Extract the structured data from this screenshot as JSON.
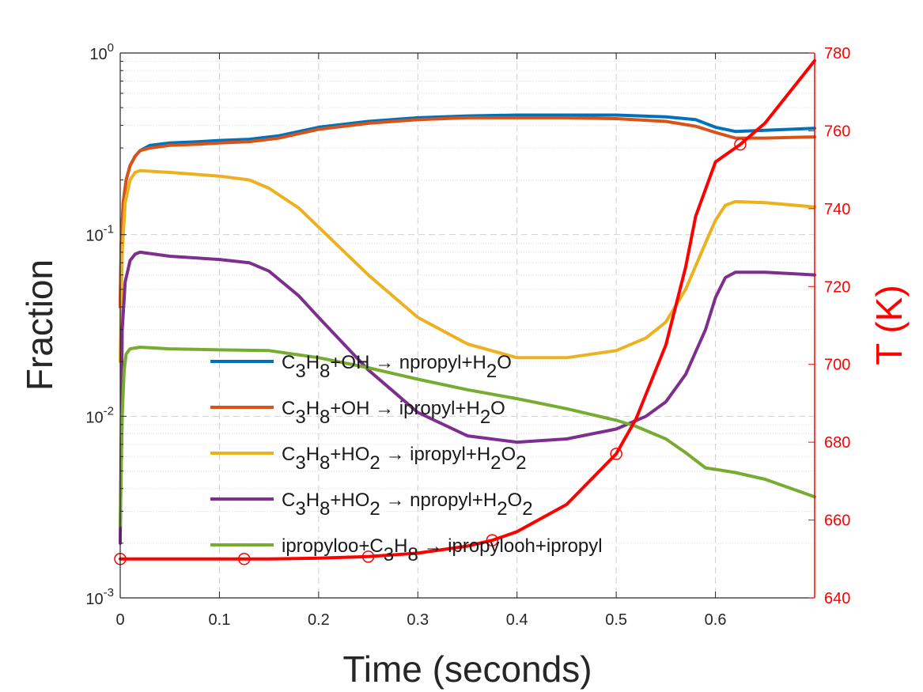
{
  "chart_data": {
    "type": "line",
    "xlabel": "Time (seconds)",
    "ylabel": "Fraction",
    "ylabel_right": "T (K)",
    "xlim": [
      0,
      0.7
    ],
    "ylim": [
      0.001,
      1
    ],
    "yscale": "log",
    "ylim_right": [
      640,
      780
    ],
    "x_ticks": [
      0,
      0.1,
      0.2,
      0.3,
      0.4,
      0.5,
      0.6
    ],
    "x_tick_labels": [
      "0",
      "0.1",
      "0.2",
      "0.3",
      "0.4",
      "0.5",
      "0.6"
    ],
    "y_ticks": [
      {
        "value": 1,
        "base": "10",
        "exp": "0"
      },
      {
        "value": 0.1,
        "base": "10",
        "exp": "-1"
      },
      {
        "value": 0.01,
        "base": "10",
        "exp": "-2"
      },
      {
        "value": 0.001,
        "base": "10",
        "exp": "-3"
      }
    ],
    "y_right_ticks": [
      640,
      660,
      680,
      700,
      720,
      740,
      760,
      780
    ],
    "grid": true,
    "legend_placement": "center",
    "series": [
      {
        "name": "C3H8+OH → npropyl+H2O",
        "label_parts": [
          [
            "C",
            "n"
          ],
          [
            "3",
            "sub"
          ],
          [
            "H",
            "n"
          ],
          [
            "8",
            "sub"
          ],
          [
            "+OH → npropyl+H",
            "n"
          ],
          [
            "2",
            "sub"
          ],
          [
            "O",
            "n"
          ]
        ],
        "color": "#0072BD",
        "axis": "left",
        "x": [
          0.0,
          0.001,
          0.003,
          0.006,
          0.01,
          0.015,
          0.02,
          0.03,
          0.05,
          0.08,
          0.1,
          0.13,
          0.16,
          0.2,
          0.25,
          0.3,
          0.35,
          0.4,
          0.45,
          0.5,
          0.55,
          0.58,
          0.6,
          0.62,
          0.65,
          0.7
        ],
        "y": [
          0.04,
          0.09,
          0.15,
          0.2,
          0.24,
          0.27,
          0.29,
          0.31,
          0.32,
          0.325,
          0.33,
          0.335,
          0.35,
          0.39,
          0.42,
          0.44,
          0.45,
          0.455,
          0.455,
          0.455,
          0.445,
          0.43,
          0.39,
          0.37,
          0.375,
          0.385
        ]
      },
      {
        "name": "C3H8+OH → ipropyl+H2O",
        "label_parts": [
          [
            "C",
            "n"
          ],
          [
            "3",
            "sub"
          ],
          [
            "H",
            "n"
          ],
          [
            "8",
            "sub"
          ],
          [
            "+OH → ipropyl+H",
            "n"
          ],
          [
            "2",
            "sub"
          ],
          [
            "O",
            "n"
          ]
        ],
        "color": "#D95319",
        "axis": "left",
        "x": [
          0.0,
          0.001,
          0.003,
          0.006,
          0.01,
          0.015,
          0.02,
          0.03,
          0.05,
          0.08,
          0.1,
          0.13,
          0.16,
          0.2,
          0.25,
          0.3,
          0.35,
          0.4,
          0.45,
          0.5,
          0.55,
          0.58,
          0.6,
          0.62,
          0.65,
          0.7
        ],
        "y": [
          0.04,
          0.09,
          0.15,
          0.2,
          0.24,
          0.27,
          0.29,
          0.3,
          0.31,
          0.315,
          0.32,
          0.325,
          0.34,
          0.38,
          0.41,
          0.43,
          0.44,
          0.44,
          0.44,
          0.435,
          0.42,
          0.395,
          0.365,
          0.34,
          0.34,
          0.345
        ]
      },
      {
        "name": "C3H8+HO2 → ipropyl+H2O2",
        "label_parts": [
          [
            "C",
            "n"
          ],
          [
            "3",
            "sub"
          ],
          [
            "H",
            "n"
          ],
          [
            "8",
            "sub"
          ],
          [
            "+HO",
            "n"
          ],
          [
            "2",
            "sub"
          ],
          [
            " → ipropyl+H",
            "n"
          ],
          [
            "2",
            "sub"
          ],
          [
            "O",
            "n"
          ],
          [
            "2",
            "sub"
          ]
        ],
        "color": "#EDB120",
        "axis": "left",
        "x": [
          0.0,
          0.002,
          0.005,
          0.01,
          0.015,
          0.02,
          0.05,
          0.1,
          0.13,
          0.15,
          0.18,
          0.2,
          0.25,
          0.3,
          0.35,
          0.4,
          0.45,
          0.5,
          0.53,
          0.55,
          0.57,
          0.59,
          0.6,
          0.61,
          0.62,
          0.65,
          0.7
        ],
        "y": [
          0.02,
          0.08,
          0.15,
          0.2,
          0.22,
          0.225,
          0.22,
          0.21,
          0.2,
          0.18,
          0.14,
          0.11,
          0.06,
          0.035,
          0.025,
          0.021,
          0.021,
          0.023,
          0.027,
          0.033,
          0.05,
          0.09,
          0.12,
          0.145,
          0.152,
          0.15,
          0.142
        ]
      },
      {
        "name": "C3H8+HO2 → npropyl+H2O2",
        "label_parts": [
          [
            "C",
            "n"
          ],
          [
            "3",
            "sub"
          ],
          [
            "H",
            "n"
          ],
          [
            "8",
            "sub"
          ],
          [
            "+HO",
            "n"
          ],
          [
            "2",
            "sub"
          ],
          [
            " → npropyl+H",
            "n"
          ],
          [
            "2",
            "sub"
          ],
          [
            "O",
            "n"
          ],
          [
            "2",
            "sub"
          ]
        ],
        "color": "#7E2F8E",
        "axis": "left",
        "x": [
          0.0,
          0.002,
          0.005,
          0.01,
          0.015,
          0.02,
          0.05,
          0.1,
          0.13,
          0.15,
          0.18,
          0.2,
          0.25,
          0.3,
          0.35,
          0.4,
          0.45,
          0.5,
          0.53,
          0.55,
          0.57,
          0.59,
          0.6,
          0.61,
          0.62,
          0.65,
          0.7
        ],
        "y": [
          0.002,
          0.03,
          0.055,
          0.072,
          0.078,
          0.08,
          0.076,
          0.073,
          0.07,
          0.063,
          0.046,
          0.035,
          0.018,
          0.0105,
          0.0078,
          0.0072,
          0.0075,
          0.0085,
          0.01,
          0.012,
          0.017,
          0.03,
          0.045,
          0.058,
          0.062,
          0.062,
          0.06
        ]
      },
      {
        "name": "ipropyloo+C3H8 → ipropylooh+ipropyl",
        "label_parts": [
          [
            "ipropyloo+C",
            "n"
          ],
          [
            "3",
            "sub"
          ],
          [
            "H",
            "n"
          ],
          [
            "8",
            "sub"
          ],
          [
            " → ipropylooh+ipropyl",
            "n"
          ]
        ],
        "color": "#77AC30",
        "axis": "left",
        "x": [
          0.0,
          0.001,
          0.002,
          0.004,
          0.006,
          0.01,
          0.02,
          0.05,
          0.1,
          0.15,
          0.2,
          0.25,
          0.3,
          0.35,
          0.4,
          0.45,
          0.5,
          0.52,
          0.55,
          0.57,
          0.59,
          0.6,
          0.62,
          0.65,
          0.7
        ],
        "y": [
          0.0025,
          0.005,
          0.01,
          0.018,
          0.022,
          0.0235,
          0.024,
          0.0235,
          0.0232,
          0.023,
          0.021,
          0.0185,
          0.016,
          0.014,
          0.0125,
          0.011,
          0.0095,
          0.0088,
          0.0075,
          0.0063,
          0.0052,
          0.0051,
          0.0049,
          0.0045,
          0.0036
        ]
      },
      {
        "name": "T (K)",
        "color": "#FF0000",
        "axis": "right",
        "x": [
          0.0,
          0.05,
          0.1,
          0.15,
          0.2,
          0.25,
          0.3,
          0.35,
          0.375,
          0.4,
          0.45,
          0.5,
          0.52,
          0.55,
          0.57,
          0.58,
          0.6,
          0.625,
          0.65,
          0.7
        ],
        "y": [
          650,
          650,
          650,
          650,
          650.2,
          650.6,
          651.5,
          653.3,
          654.8,
          657,
          664,
          677,
          686,
          705,
          725,
          738,
          752,
          756.5,
          762,
          778
        ],
        "markers": {
          "x": [
            0.0,
            0.125,
            0.25,
            0.375,
            0.5,
            0.625
          ],
          "y": [
            650,
            650,
            650.6,
            654.8,
            677,
            756.5
          ]
        }
      }
    ]
  }
}
